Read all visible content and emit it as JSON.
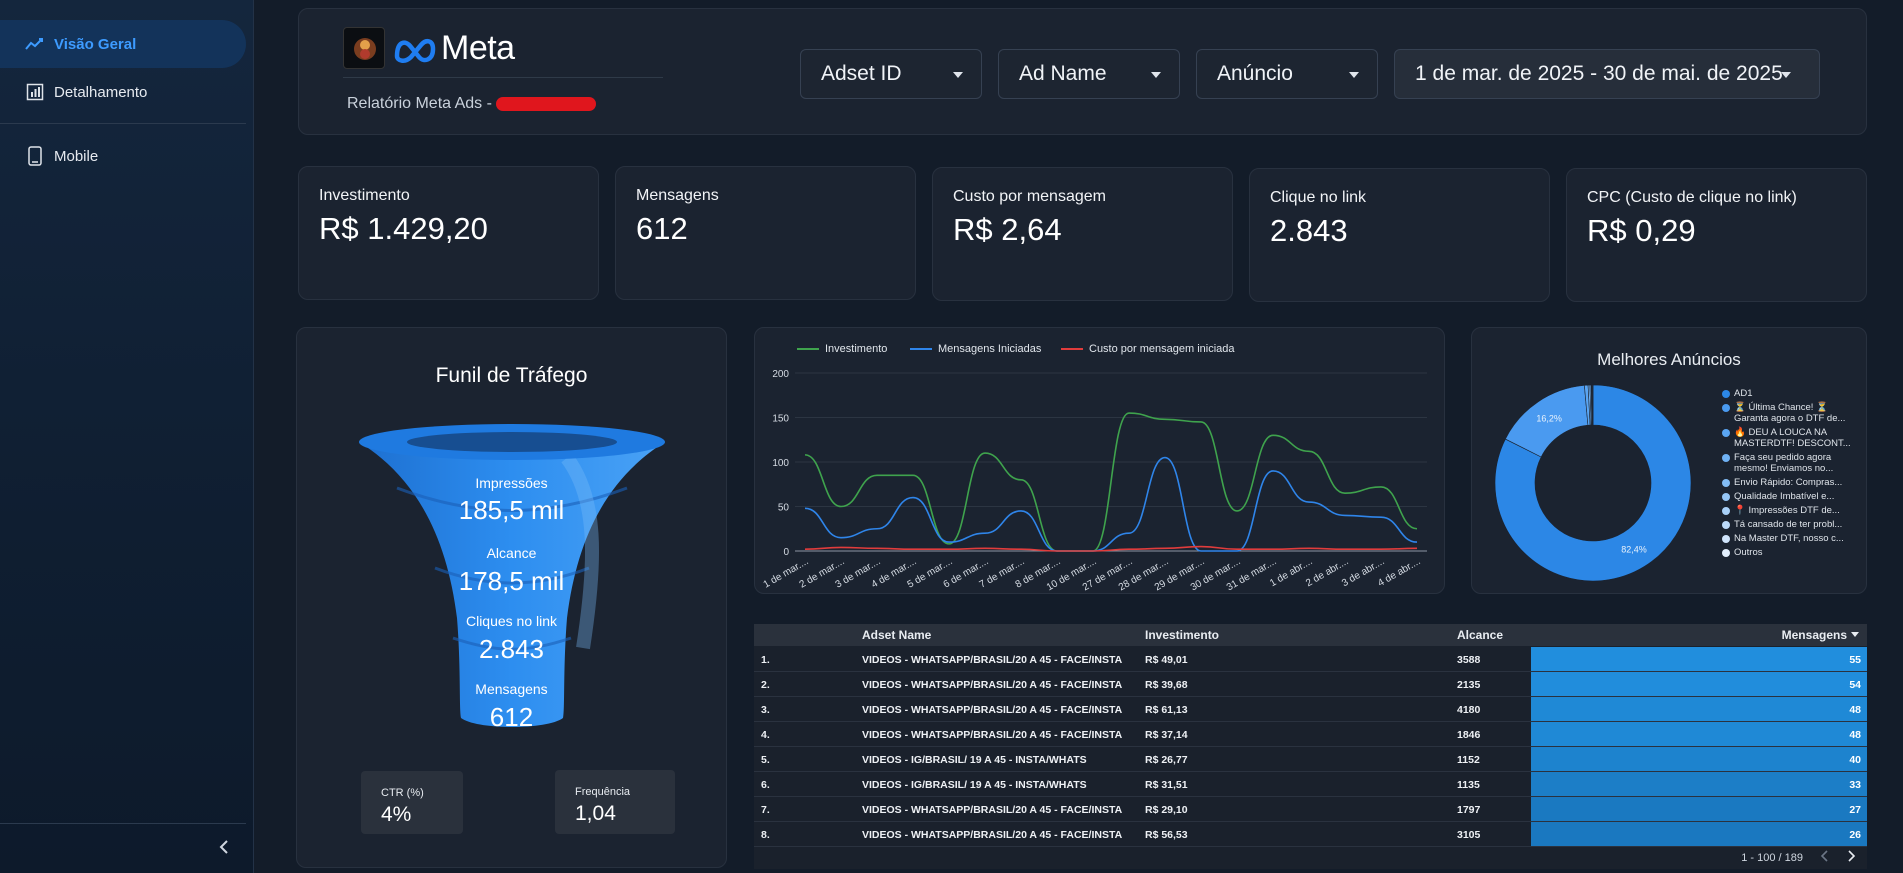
{
  "sidebar": {
    "items": [
      {
        "label": "Visão Geral",
        "icon": "trend-line-icon",
        "active": true
      },
      {
        "label": "Detalhamento",
        "icon": "bar-chart-icon",
        "active": false
      },
      {
        "label": "Mobile",
        "icon": "smartphone-icon",
        "active": false
      }
    ],
    "collapse_icon": "chevron-left-icon"
  },
  "header": {
    "brand": "Meta",
    "report_title": "Relatório Meta Ads -",
    "filters": {
      "adset": "Adset ID",
      "ad_name": "Ad Name",
      "anuncio": "Anúncio",
      "date_range": "1 de mar. de 2025 - 30 de mai. de 2025"
    }
  },
  "kpis": [
    {
      "label": "Investimento",
      "value": "R$ 1.429,20"
    },
    {
      "label": "Mensagens",
      "value": "612"
    },
    {
      "label": "Custo por mensagem",
      "value": "R$ 2,64"
    },
    {
      "label": "Clique no link",
      "value": "2.843"
    },
    {
      "label": "CPC (Custo de clique no link)",
      "value": "R$ 0,29"
    }
  ],
  "funnel": {
    "title": "Funil de Tráfego",
    "stages": [
      {
        "label": "Impressões",
        "value": "185,5 mil"
      },
      {
        "label": "Alcance",
        "value": "178,5 mil"
      },
      {
        "label": "Cliques no link",
        "value": "2.843"
      },
      {
        "label": "Mensagens",
        "value": "612"
      }
    ],
    "ctr": {
      "label": "CTR (%)",
      "value": "4%"
    },
    "freq": {
      "label": "Frequência",
      "value": "1,04"
    }
  },
  "chart_data": [
    {
      "type": "line",
      "title": "",
      "x": [
        "1 de mar....",
        "2 de mar....",
        "3 de mar....",
        "4 de mar....",
        "5 de mar....",
        "6 de mar....",
        "7 de mar....",
        "8 de mar....",
        "10 de mar....",
        "27 de mar....",
        "28 de mar....",
        "29 de mar....",
        "30 de mar....",
        "31 de mar....",
        "1 de abr....",
        "2 de abr....",
        "3 de abr....",
        "4 de abr...."
      ],
      "ylim": [
        0,
        200
      ],
      "yticks": [
        "0",
        "50",
        "100",
        "150",
        "200"
      ],
      "series": [
        {
          "name": "Investimento",
          "color": "#3fa34d",
          "values": [
            108,
            50,
            85,
            85,
            8,
            110,
            80,
            0,
            0,
            155,
            148,
            145,
            45,
            130,
            112,
            65,
            72,
            25
          ]
        },
        {
          "name": "Mensagens Iniciadas",
          "color": "#2f85ea",
          "values": [
            48,
            15,
            25,
            60,
            10,
            20,
            45,
            0,
            0,
            20,
            105,
            0,
            0,
            90,
            55,
            40,
            38,
            10
          ]
        },
        {
          "name": "Custo por mensagem iniciada",
          "color": "#e03c3c",
          "values": [
            2,
            4,
            3,
            2,
            2,
            3,
            2,
            0,
            0,
            2,
            3,
            5,
            2,
            2,
            3,
            2,
            2,
            3
          ]
        }
      ]
    },
    {
      "type": "pie",
      "title": "Melhores Anúncios",
      "slices": [
        {
          "label": "AD1",
          "value": 82.4,
          "color": "#2c87e6",
          "pct_label": "82,4%"
        },
        {
          "label": "⏳ Última Chance! ⏳ Garanta agora o DTF de...",
          "value": 16.2,
          "color": "#4a9af0",
          "pct_label": "16,2%"
        },
        {
          "label": "🔥 DEU A LOUCA NA MASTERDTF! DESCONT...",
          "value": 0.6,
          "color": "#5aa5f2",
          "pct_label": ""
        },
        {
          "label": "Faça seu pedido agora mesmo! Enviamos no...",
          "value": 0.3,
          "color": "#6fb1f4",
          "pct_label": ""
        },
        {
          "label": "Envio Rápido: Compras...",
          "value": 0.2,
          "color": "#82bcf5",
          "pct_label": ""
        },
        {
          "label": "Qualidade Imbatível e...",
          "value": 0.1,
          "color": "#95c6f7",
          "pct_label": ""
        },
        {
          "label": "📍 Impressões DTF de...",
          "value": 0.1,
          "color": "#a8d0f8",
          "pct_label": ""
        },
        {
          "label": "Tá cansado de ter probl...",
          "value": 0.05,
          "color": "#bcdaf9",
          "pct_label": ""
        },
        {
          "label": "Na Master DTF, nosso c...",
          "value": 0.03,
          "color": "#cfe4fb",
          "pct_label": ""
        },
        {
          "label": "Outros",
          "value": 0.02,
          "color": "#e2eefc",
          "pct_label": ""
        }
      ]
    }
  ],
  "table": {
    "columns": [
      "Adset Name",
      "Investimento",
      "Alcance",
      "Mensagens"
    ],
    "sort_icon": "caret-down-icon",
    "rows": [
      {
        "idx": "1.",
        "name": "VIDEOS - WHATSAPP/BRASIL/20 A 45 - FACE/INSTA",
        "inv": "R$ 49,01",
        "alc": "3588",
        "msg": "55"
      },
      {
        "idx": "2.",
        "name": "VIDEOS - WHATSAPP/BRASIL/20 A 45 - FACE/INSTA",
        "inv": "R$ 39,68",
        "alc": "2135",
        "msg": "54"
      },
      {
        "idx": "3.",
        "name": "VIDEOS - WHATSAPP/BRASIL/20 A 45 - FACE/INSTA",
        "inv": "R$ 61,13",
        "alc": "4180",
        "msg": "48"
      },
      {
        "idx": "4.",
        "name": "VIDEOS - WHATSAPP/BRASIL/20 A 45 - FACE/INSTA",
        "inv": "R$ 37,14",
        "alc": "1846",
        "msg": "48"
      },
      {
        "idx": "5.",
        "name": "VIDEOS - IG/BRASIL/ 19 A 45 - INSTA/WHATS",
        "inv": "R$ 26,77",
        "alc": "1152",
        "msg": "40"
      },
      {
        "idx": "6.",
        "name": "VIDEOS - IG/BRASIL/ 19 A 45 - INSTA/WHATS",
        "inv": "R$ 31,51",
        "alc": "1135",
        "msg": "33"
      },
      {
        "idx": "7.",
        "name": "VIDEOS - WHATSAPP/BRASIL/20 A 45 - FACE/INSTA",
        "inv": "R$ 29,10",
        "alc": "1797",
        "msg": "27"
      },
      {
        "idx": "8.",
        "name": "VIDEOS - WHATSAPP/BRASIL/20 A 45 - FACE/INSTA",
        "inv": "R$ 56,53",
        "alc": "3105",
        "msg": "26"
      }
    ],
    "pagination": "1 - 100 / 189"
  }
}
